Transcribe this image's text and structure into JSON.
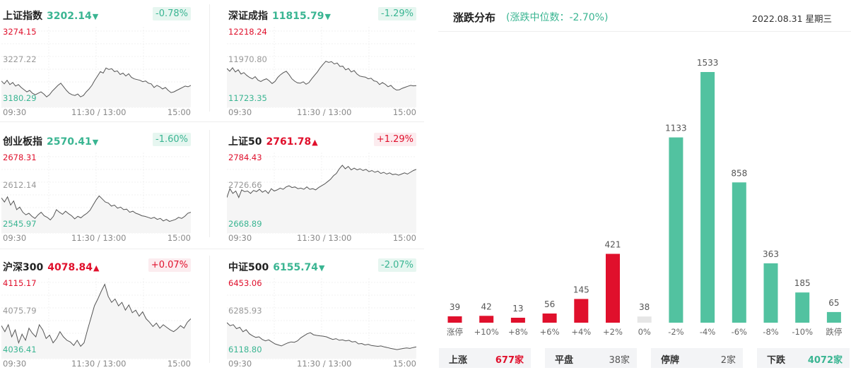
{
  "indices": [
    {
      "name": "上证指数",
      "value": "3202.14",
      "arrow": "▼",
      "change": "-0.78%",
      "dir": "down",
      "max": "3274.15",
      "mid": "3227.22",
      "min": "3180.29",
      "times": [
        "09:30",
        "11:30 / 13:00",
        "15:00"
      ],
      "series": [
        3205,
        3201,
        3206,
        3200,
        3203,
        3198,
        3200,
        3196,
        3193,
        3190,
        3192,
        3188,
        3186,
        3188,
        3190,
        3187,
        3183,
        3186,
        3191,
        3195,
        3199,
        3202,
        3197,
        3192,
        3188,
        3186,
        3185,
        3187,
        3183,
        3185,
        3190,
        3194,
        3199,
        3206,
        3212,
        3218,
        3216,
        3223,
        3221,
        3222,
        3218,
        3219,
        3214,
        3216,
        3212,
        3215,
        3210,
        3208,
        3207,
        3206,
        3204,
        3205,
        3202,
        3201,
        3196,
        3199,
        3197,
        3194,
        3196,
        3192,
        3189,
        3190,
        3192,
        3194,
        3196,
        3198,
        3197,
        3199
      ]
    },
    {
      "name": "深证成指",
      "value": "11815.79",
      "arrow": "▼",
      "change": "-1.29%",
      "dir": "down",
      "max": "12218.24",
      "mid": "11970.80",
      "min": "11723.35",
      "times": [
        "09:30",
        "11:30 / 13:00",
        "15:00"
      ],
      "series": [
        11945,
        11925,
        11950,
        11920,
        11935,
        11905,
        11915,
        11895,
        11880,
        11870,
        11885,
        11860,
        11850,
        11862,
        11870,
        11855,
        11835,
        11850,
        11880,
        11900,
        11915,
        11925,
        11900,
        11870,
        11852,
        11840,
        11838,
        11848,
        11830,
        11842,
        11870,
        11895,
        11920,
        11950,
        11975,
        11998,
        11990,
        11995,
        11978,
        11985,
        11960,
        11962,
        11935,
        11945,
        11920,
        11930,
        11905,
        11890,
        11885,
        11882,
        11870,
        11874,
        11855,
        11850,
        11828,
        11842,
        11830,
        11812,
        11822,
        11800,
        11788,
        11790,
        11800,
        11808,
        11815,
        11822,
        11818,
        11820
      ]
    },
    {
      "name": "创业板指",
      "value": "2570.41",
      "arrow": "▼",
      "change": "-1.60%",
      "dir": "down",
      "max": "2678.31",
      "mid": "2612.14",
      "min": "2545.97",
      "times": [
        "09:30",
        "11:30 / 13:00",
        "15:00"
      ],
      "series": [
        2598,
        2590,
        2600,
        2584,
        2592,
        2575,
        2580,
        2570,
        2565,
        2568,
        2562,
        2558,
        2565,
        2570,
        2563,
        2560,
        2555,
        2562,
        2575,
        2570,
        2566,
        2572,
        2567,
        2563,
        2557,
        2562,
        2559,
        2564,
        2568,
        2574,
        2584,
        2594,
        2602,
        2596,
        2590,
        2588,
        2582,
        2584,
        2578,
        2580,
        2575,
        2576,
        2570,
        2572,
        2568,
        2566,
        2563,
        2562,
        2560,
        2558,
        2560,
        2556,
        2558,
        2553,
        2556,
        2552,
        2554,
        2556,
        2560,
        2558,
        2562,
        2568,
        2570
      ]
    },
    {
      "name": "上证50",
      "value": "2761.78",
      "arrow": "▲",
      "change": "+1.29%",
      "dir": "up",
      "max": "2784.43",
      "mid": "2726.66",
      "min": "2668.89",
      "times": [
        "09:30",
        "11:30 / 13:00",
        "15:00"
      ],
      "series": [
        2715,
        2730,
        2722,
        2726,
        2715,
        2728,
        2725,
        2726,
        2722,
        2727,
        2725,
        2729,
        2724,
        2727,
        2722,
        2730,
        2726,
        2728,
        2731,
        2729,
        2733,
        2735,
        2732,
        2733,
        2730,
        2731,
        2729,
        2733,
        2729,
        2730,
        2728,
        2732,
        2735,
        2738,
        2742,
        2746,
        2752,
        2756,
        2764,
        2770,
        2764,
        2768,
        2762,
        2765,
        2762,
        2764,
        2761,
        2763,
        2759,
        2761,
        2758,
        2760,
        2756,
        2758,
        2755,
        2757,
        2754,
        2755,
        2753,
        2755,
        2757,
        2755,
        2758,
        2761,
        2763
      ]
    },
    {
      "name": "沪深300",
      "value": "4078.84",
      "arrow": "▲",
      "change": "+0.07%",
      "dir": "up",
      "max": "4115.17",
      "mid": "4075.79",
      "min": "4036.41",
      "times": [
        "09:30",
        "11:30 / 13:00",
        "15:00"
      ],
      "series": [
        4065,
        4058,
        4066,
        4052,
        4060,
        4045,
        4055,
        4048,
        4062,
        4056,
        4052,
        4066,
        4060,
        4050,
        4054,
        4045,
        4050,
        4058,
        4052,
        4048,
        4046,
        4042,
        4048,
        4041,
        4045,
        4060,
        4074,
        4088,
        4096,
        4105,
        4113,
        4099,
        4092,
        4096,
        4088,
        4092,
        4083,
        4089,
        4080,
        4083,
        4076,
        4081,
        4073,
        4069,
        4064,
        4068,
        4062,
        4066,
        4063,
        4060,
        4058,
        4061,
        4065,
        4062,
        4069,
        4073
      ]
    },
    {
      "name": "中证500",
      "value": "6155.74",
      "arrow": "▼",
      "change": "-2.07%",
      "dir": "down",
      "max": "6453.06",
      "mid": "6285.93",
      "min": "6118.80",
      "times": [
        "09:30",
        "11:30 / 13:00",
        "15:00"
      ],
      "series": [
        6255,
        6240,
        6245,
        6225,
        6232,
        6210,
        6220,
        6200,
        6190,
        6182,
        6185,
        6172,
        6165,
        6170,
        6160,
        6150,
        6145,
        6140,
        6148,
        6155,
        6160,
        6158,
        6165,
        6180,
        6190,
        6200,
        6205,
        6195,
        6192,
        6190,
        6188,
        6185,
        6178,
        6172,
        6176,
        6168,
        6170,
        6165,
        6168,
        6160,
        6162,
        6150,
        6152,
        6145,
        6148,
        6142,
        6140,
        6138,
        6140,
        6135,
        6132,
        6128,
        6125,
        6122,
        6125,
        6128,
        6130,
        6128,
        6132,
        6135
      ]
    }
  ],
  "distribution": {
    "title": "涨跌分布",
    "median": "(涨跌中位数：-2.70%)",
    "date": "2022.08.31 星期三",
    "stats": [
      {
        "label": "上涨",
        "value": "677家"
      },
      {
        "label": "平盘",
        "value": "38家"
      },
      {
        "label": "停牌",
        "value": "2家"
      },
      {
        "label": "下跌",
        "value": "4072家"
      }
    ]
  },
  "chart_data": {
    "type": "bar",
    "title": "涨跌分布",
    "categories": [
      "涨停",
      "+10%",
      "+8%",
      "+6%",
      "+4%",
      "+2%",
      "0%",
      "-2%",
      "-4%",
      "-6%",
      "-8%",
      "-10%",
      "跌停"
    ],
    "values": [
      39,
      42,
      13,
      56,
      145,
      421,
      38,
      1133,
      1533,
      858,
      363,
      185,
      65
    ],
    "colors": [
      "#e0102c",
      "#e0102c",
      "#e0102c",
      "#e0102c",
      "#e0102c",
      "#e0102c",
      "#e6e6e6",
      "#52c2a0",
      "#52c2a0",
      "#52c2a0",
      "#52c2a0",
      "#52c2a0",
      "#52c2a0"
    ],
    "ylim": [
      0,
      1533
    ]
  },
  "theme": {
    "up": "#e0102c",
    "down": "#3ab592",
    "bar_down": "#52c2a0",
    "flat": "#e6e6e6"
  }
}
